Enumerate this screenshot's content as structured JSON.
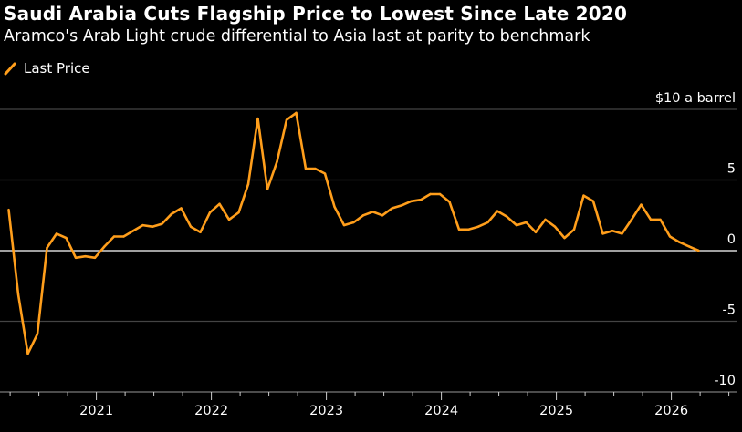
{
  "chart_data": {
    "type": "line",
    "title": "Saudi Arabia Cuts Flagship Price to Lowest Since Late 2020",
    "subtitle": "Aramco's Arab Light crude differential to Asia last at parity to benchmark",
    "ylabel": "$10 a barrel",
    "xlabel": "",
    "ylim": [
      -10,
      10
    ],
    "yticks": [
      10,
      5,
      0,
      -5,
      -10
    ],
    "ytick_labels": [
      "$10 a barrel",
      "5",
      "0",
      "-5",
      "-10"
    ],
    "xticks": [
      "2021",
      "2022",
      "2023",
      "2024",
      "2025",
      "2026"
    ],
    "x_start": "2020-03",
    "x_end": "2026-03",
    "grid": true,
    "legend": "top-left",
    "colors": {
      "series": "#ff9e1b",
      "zero_line": "#ffffff",
      "grid": "#444444",
      "background": "#000000"
    },
    "series": [
      {
        "name": "Last Price",
        "values": [
          2.9,
          -3.1,
          -7.3,
          -5.9,
          0.2,
          1.2,
          0.9,
          -0.5,
          -0.4,
          -0.5,
          0.3,
          1.0,
          1.0,
          1.4,
          1.8,
          1.7,
          1.9,
          2.6,
          3.0,
          1.7,
          1.3,
          2.7,
          3.3,
          2.2,
          2.7,
          4.7,
          9.35,
          4.35,
          6.3,
          9.25,
          9.75,
          5.8,
          5.8,
          5.45,
          3.1,
          1.8,
          2.0,
          2.5,
          2.75,
          2.5,
          3.0,
          3.2,
          3.5,
          3.6,
          4.0,
          4.0,
          3.45,
          1.5,
          1.5,
          1.7,
          2.0,
          2.8,
          2.4,
          1.8,
          2.0,
          1.3,
          2.2,
          1.7,
          0.9,
          1.5,
          3.9,
          3.5,
          1.2,
          1.4,
          1.2,
          2.2,
          3.25,
          2.2,
          2.2,
          1.0,
          0.6,
          0.3,
          0.0
        ]
      }
    ]
  }
}
